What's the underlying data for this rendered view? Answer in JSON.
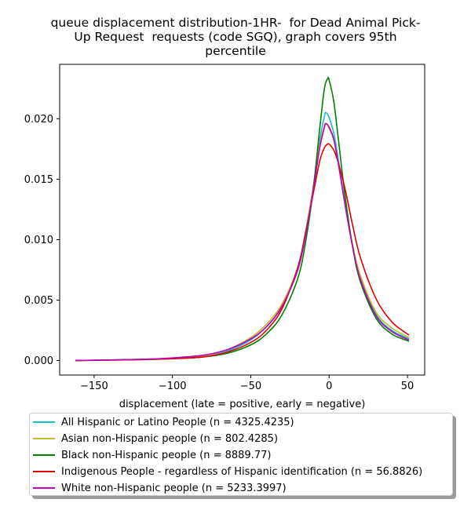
{
  "chart_data": {
    "type": "line",
    "title_lines": [
      "queue displacement distribution-1HR-  for Dead Animal Pick-",
      "Up Request  requests (code SGQ), graph covers 95th",
      "percentile"
    ],
    "xlabel": "displacement (late = positive, early = negative)",
    "ylabel": "",
    "xlim": [
      -172,
      61
    ],
    "ylim": [
      -0.0012,
      0.0245
    ],
    "xticks": [
      -150,
      -100,
      -50,
      0,
      50
    ],
    "xtick_labels": [
      "−150",
      "−100",
      "−50",
      "0",
      "50"
    ],
    "yticks": [
      0.0,
      0.005,
      0.01,
      0.015,
      0.02
    ],
    "ytick_labels": [
      "0.000",
      "0.005",
      "0.010",
      "0.015",
      "0.020"
    ],
    "grid": false,
    "legend_position": "below",
    "series": [
      {
        "name": "All Hispanic or Latino People (n = 4325.4235)",
        "color": "#17becf",
        "x": [
          -162,
          -140,
          -120,
          -100,
          -80,
          -65,
          -50,
          -40,
          -30,
          -20,
          -15,
          -10,
          -6,
          -3,
          -2,
          0,
          3,
          6,
          10,
          15,
          20,
          30,
          40,
          51
        ],
        "y": [
          0.0,
          5e-05,
          0.0001,
          0.0002,
          0.0004,
          0.0008,
          0.0017,
          0.0028,
          0.0045,
          0.0075,
          0.0105,
          0.0145,
          0.0182,
          0.0202,
          0.0205,
          0.0201,
          0.0188,
          0.0165,
          0.0132,
          0.0095,
          0.0068,
          0.0038,
          0.0025,
          0.0018
        ]
      },
      {
        "name": "Asian non-Hispanic people (n = 802.4285)",
        "color": "#bcbd22",
        "x": [
          -162,
          -140,
          -120,
          -100,
          -80,
          -65,
          -50,
          -40,
          -30,
          -20,
          -15,
          -10,
          -6,
          -3,
          -2,
          0,
          3,
          6,
          10,
          15,
          20,
          30,
          40,
          51
        ],
        "y": [
          0.0,
          5e-05,
          0.0001,
          0.0002,
          0.0004,
          0.0009,
          0.0019,
          0.003,
          0.0047,
          0.0077,
          0.0107,
          0.0145,
          0.0178,
          0.0194,
          0.0196,
          0.0192,
          0.0182,
          0.0162,
          0.0131,
          0.0096,
          0.007,
          0.004,
          0.0027,
          0.0019
        ]
      },
      {
        "name": "Black non-Hispanic people (n = 8889.77)",
        "color": "#008000",
        "x": [
          -162,
          -140,
          -120,
          -100,
          -80,
          -65,
          -50,
          -40,
          -30,
          -20,
          -15,
          -10,
          -6,
          -3,
          -1,
          0,
          3,
          6,
          10,
          15,
          20,
          30,
          40,
          51
        ],
        "y": [
          0.0,
          4e-05,
          8e-05,
          0.00015,
          0.0003,
          0.0006,
          0.0013,
          0.0022,
          0.0038,
          0.0068,
          0.0098,
          0.0143,
          0.0192,
          0.0225,
          0.0233,
          0.0232,
          0.0214,
          0.0182,
          0.0138,
          0.0094,
          0.0065,
          0.0035,
          0.0022,
          0.0016
        ]
      },
      {
        "name": "Indigenous People - regardless of Hispanic identification (n = 56.8826)",
        "color": "#e00000",
        "x": [
          -162,
          -140,
          -120,
          -100,
          -80,
          -65,
          -50,
          -40,
          -30,
          -20,
          -15,
          -10,
          -6,
          -3,
          -1,
          0,
          3,
          6,
          10,
          15,
          20,
          30,
          40,
          51
        ],
        "y": [
          0.0,
          4e-05,
          8e-05,
          0.00015,
          0.0003,
          0.0007,
          0.0015,
          0.0025,
          0.0043,
          0.0077,
          0.0106,
          0.0139,
          0.0165,
          0.0176,
          0.0179,
          0.0179,
          0.0174,
          0.0163,
          0.0143,
          0.0112,
          0.0085,
          0.0051,
          0.0032,
          0.0021
        ]
      },
      {
        "name": "White non-Hispanic people (n = 5233.3997)",
        "color": "#bf00bf",
        "x": [
          -162,
          -140,
          -120,
          -100,
          -80,
          -65,
          -50,
          -40,
          -30,
          -20,
          -15,
          -10,
          -6,
          -3,
          -2,
          0,
          3,
          6,
          10,
          15,
          20,
          30,
          40,
          51
        ],
        "y": [
          0.0,
          5e-05,
          0.0001,
          0.00022,
          0.00045,
          0.0009,
          0.0018,
          0.0028,
          0.0045,
          0.0075,
          0.0104,
          0.0142,
          0.0176,
          0.0193,
          0.0196,
          0.0193,
          0.0183,
          0.0162,
          0.013,
          0.0094,
          0.0067,
          0.0037,
          0.0024,
          0.0017
        ]
      }
    ]
  }
}
